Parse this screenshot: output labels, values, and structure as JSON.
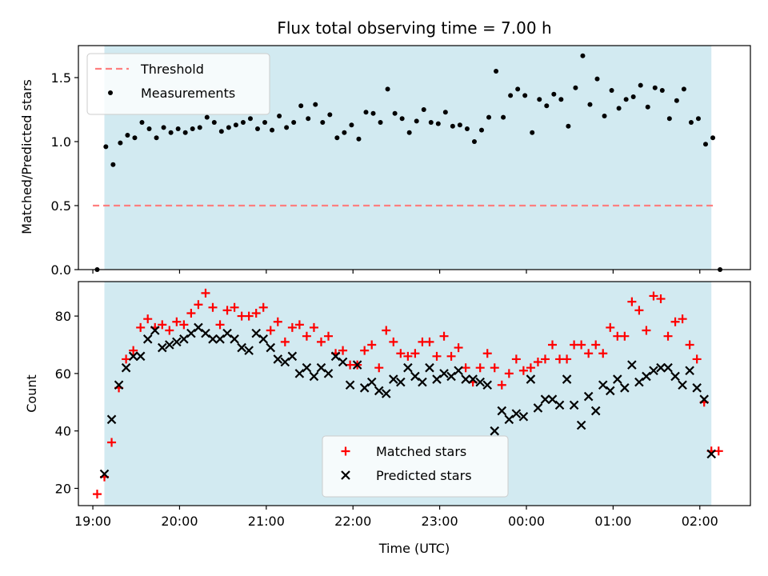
{
  "chart_data": [
    {
      "type": "scatter",
      "title": "Flux total observing time = 7.00 h",
      "xlabel": "",
      "ylabel": "Matched/Predicted stars",
      "ylim": [
        0,
        1.75
      ],
      "yticks": [
        "0.0",
        "0.5",
        "1.0",
        "1.5"
      ],
      "xlim": [
        "18:50",
        "02:35"
      ],
      "xticks": [
        "19:00",
        "20:00",
        "21:00",
        "22:00",
        "23:00",
        "00:00",
        "01:00",
        "02:00"
      ],
      "shaded_span": [
        "19:08",
        "02:08"
      ],
      "shaded_color": "#add8e6",
      "grid": false,
      "legend_position": "upper left",
      "threshold": {
        "name": "Threshold",
        "value": 0.5,
        "x_range": [
          "19:00",
          "02:10"
        ],
        "color": "#ff7f7f",
        "style": "dashed"
      },
      "series": [
        {
          "name": "Measurements",
          "color": "#000000",
          "marker": "dot",
          "x": [
            "19:03",
            "19:09",
            "19:14",
            "19:19",
            "19:24",
            "19:29",
            "19:34",
            "19:39",
            "19:44",
            "19:49",
            "19:54",
            "19:59",
            "20:04",
            "20:09",
            "20:14",
            "20:19",
            "20:24",
            "20:29",
            "20:34",
            "20:39",
            "20:44",
            "20:49",
            "20:54",
            "20:59",
            "21:04",
            "21:09",
            "21:14",
            "21:19",
            "21:24",
            "21:29",
            "21:34",
            "21:39",
            "21:44",
            "21:49",
            "21:54",
            "21:59",
            "22:04",
            "22:09",
            "22:14",
            "22:19",
            "22:24",
            "22:29",
            "22:34",
            "22:39",
            "22:44",
            "22:49",
            "22:54",
            "22:59",
            "23:04",
            "23:09",
            "23:14",
            "23:19",
            "23:24",
            "23:29",
            "23:34",
            "23:39",
            "23:44",
            "23:49",
            "23:54",
            "23:59",
            "00:04",
            "00:09",
            "00:14",
            "00:19",
            "00:24",
            "00:29",
            "00:34",
            "00:39",
            "00:44",
            "00:49",
            "00:54",
            "00:59",
            "01:04",
            "01:09",
            "01:14",
            "01:19",
            "01:24",
            "01:29",
            "01:34",
            "01:39",
            "01:44",
            "01:49",
            "01:54",
            "01:59",
            "02:04",
            "02:09",
            "02:14"
          ],
          "values": [
            0.0,
            0.96,
            0.82,
            0.99,
            1.05,
            1.03,
            1.15,
            1.1,
            1.03,
            1.11,
            1.07,
            1.1,
            1.07,
            1.1,
            1.11,
            1.19,
            1.15,
            1.08,
            1.11,
            1.13,
            1.15,
            1.18,
            1.1,
            1.15,
            1.09,
            1.2,
            1.11,
            1.15,
            1.28,
            1.18,
            1.29,
            1.15,
            1.21,
            1.03,
            1.07,
            1.13,
            1.02,
            1.23,
            1.22,
            1.15,
            1.41,
            1.22,
            1.18,
            1.07,
            1.16,
            1.25,
            1.15,
            1.14,
            1.23,
            1.12,
            1.13,
            1.1,
            1.0,
            1.09,
            1.19,
            1.55,
            1.19,
            1.36,
            1.41,
            1.36,
            1.07,
            1.33,
            1.28,
            1.37,
            1.33,
            1.12,
            1.42,
            1.67,
            1.29,
            1.49,
            1.2,
            1.4,
            1.26,
            1.33,
            1.35,
            1.44,
            1.27,
            1.42,
            1.4,
            1.18,
            1.32,
            1.41,
            1.15,
            1.18,
            0.98,
            1.03,
            0.0
          ]
        }
      ]
    },
    {
      "type": "scatter",
      "title": "",
      "xlabel": "Time (UTC)",
      "ylabel": "Count",
      "ylim": [
        14,
        92
      ],
      "yticks": [
        "20",
        "40",
        "60",
        "80"
      ],
      "xlim": [
        "18:50",
        "02:35"
      ],
      "xticks": [
        "19:00",
        "20:00",
        "21:00",
        "22:00",
        "23:00",
        "00:00",
        "01:00",
        "02:00"
      ],
      "shaded_span": [
        "19:08",
        "02:08"
      ],
      "shaded_color": "#add8e6",
      "grid": false,
      "legend_position": "lower center",
      "series": [
        {
          "name": "Matched stars",
          "color": "#ff0000",
          "marker": "plus",
          "x": [
            "19:03",
            "19:08",
            "19:13",
            "19:18",
            "19:23",
            "19:28",
            "19:33",
            "19:38",
            "19:43",
            "19:48",
            "19:53",
            "19:58",
            "20:03",
            "20:08",
            "20:13",
            "20:18",
            "20:23",
            "20:28",
            "20:33",
            "20:38",
            "20:43",
            "20:48",
            "20:53",
            "20:58",
            "21:03",
            "21:08",
            "21:13",
            "21:18",
            "21:23",
            "21:28",
            "21:33",
            "21:38",
            "21:43",
            "21:48",
            "21:53",
            "21:58",
            "22:03",
            "22:08",
            "22:13",
            "22:18",
            "22:23",
            "22:28",
            "22:33",
            "22:38",
            "22:43",
            "22:48",
            "22:53",
            "22:58",
            "23:03",
            "23:08",
            "23:13",
            "23:18",
            "23:23",
            "23:28",
            "23:33",
            "23:38",
            "23:43",
            "23:48",
            "23:53",
            "23:58",
            "00:03",
            "00:08",
            "00:13",
            "00:18",
            "00:23",
            "00:28",
            "00:33",
            "00:38",
            "00:43",
            "00:48",
            "00:53",
            "00:58",
            "01:03",
            "01:08",
            "01:13",
            "01:18",
            "01:23",
            "01:28",
            "01:33",
            "01:38",
            "01:43",
            "01:48",
            "01:53",
            "01:58",
            "02:03",
            "02:08",
            "02:13"
          ],
          "values": [
            18,
            24,
            36,
            55,
            65,
            68,
            76,
            79,
            76,
            77,
            75,
            78,
            77,
            81,
            84,
            88,
            83,
            77,
            82,
            83,
            80,
            80,
            81,
            83,
            75,
            78,
            71,
            76,
            77,
            73,
            76,
            71,
            73,
            67,
            68,
            63,
            63,
            68,
            70,
            62,
            75,
            71,
            67,
            66,
            67,
            71,
            71,
            66,
            73,
            66,
            69,
            62,
            57,
            62,
            67,
            62,
            56,
            60,
            65,
            61,
            62,
            64,
            65,
            70,
            65,
            65,
            70,
            70,
            67,
            70,
            67,
            76,
            73,
            73,
            85,
            82,
            75,
            87,
            86,
            73,
            78,
            79,
            70,
            65,
            50,
            33,
            33
          ]
        },
        {
          "name": "Predicted stars",
          "color": "#000000",
          "marker": "x",
          "x": [
            "19:08",
            "19:13",
            "19:18",
            "19:23",
            "19:28",
            "19:33",
            "19:38",
            "19:43",
            "19:48",
            "19:53",
            "19:58",
            "20:03",
            "20:08",
            "20:13",
            "20:18",
            "20:23",
            "20:28",
            "20:33",
            "20:38",
            "20:43",
            "20:48",
            "20:53",
            "20:58",
            "21:03",
            "21:08",
            "21:13",
            "21:18",
            "21:23",
            "21:28",
            "21:33",
            "21:38",
            "21:43",
            "21:48",
            "21:53",
            "21:58",
            "22:03",
            "22:08",
            "22:13",
            "22:18",
            "22:23",
            "22:28",
            "22:33",
            "22:38",
            "22:43",
            "22:48",
            "22:53",
            "22:58",
            "23:03",
            "23:08",
            "23:13",
            "23:18",
            "23:23",
            "23:28",
            "23:33",
            "23:38",
            "23:43",
            "23:48",
            "23:53",
            "23:58",
            "00:03",
            "00:08",
            "00:13",
            "00:18",
            "00:23",
            "00:28",
            "00:33",
            "00:38",
            "00:43",
            "00:48",
            "00:53",
            "00:58",
            "01:03",
            "01:08",
            "01:13",
            "01:18",
            "01:23",
            "01:28",
            "01:33",
            "01:38",
            "01:43",
            "01:48",
            "01:53",
            "01:58",
            "02:03",
            "02:08"
          ],
          "values": [
            25,
            44,
            56,
            62,
            66,
            66,
            72,
            75,
            69,
            70,
            71,
            72,
            74,
            76,
            74,
            72,
            72,
            74,
            72,
            69,
            68,
            74,
            72,
            69,
            65,
            64,
            66,
            60,
            62,
            59,
            62,
            60,
            66,
            64,
            56,
            63,
            55,
            57,
            54,
            53,
            58,
            57,
            62,
            59,
            57,
            62,
            58,
            60,
            59,
            61,
            58,
            58,
            57,
            56,
            40,
            47,
            44,
            46,
            45,
            58,
            48,
            51,
            51,
            49,
            58,
            49,
            42,
            52,
            47,
            56,
            54,
            58,
            55,
            63,
            57,
            59,
            61,
            62,
            62,
            59,
            56,
            61,
            55,
            51,
            32
          ]
        }
      ]
    }
  ]
}
